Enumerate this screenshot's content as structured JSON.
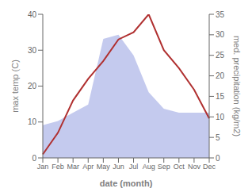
{
  "chart_data": {
    "type": "line",
    "xlabel": "date (month)",
    "ylabel": "max temp (C)",
    "y2label": "med. precipitation (kg/m2)",
    "categories": [
      "Jan",
      "Feb",
      "Mar",
      "Apr",
      "May",
      "Jun",
      "Jul",
      "Aug",
      "Sep",
      "Oct",
      "Nov",
      "Dec"
    ],
    "series": [
      {
        "type": "area",
        "axis": "y2",
        "color": "#b0b8e8",
        "values": [
          8,
          9,
          11,
          13,
          29,
          30,
          25,
          16,
          12,
          11,
          11,
          11
        ]
      },
      {
        "type": "line",
        "color": "#b03030",
        "values": [
          1,
          7,
          16,
          22,
          27,
          33,
          35,
          40,
          30,
          25,
          19,
          11
        ]
      }
    ],
    "ylim": [
      0,
      40
    ],
    "yticks": [
      0,
      10,
      20,
      30,
      40
    ],
    "y2lim": [
      0,
      35
    ],
    "y2ticks": [
      0,
      5,
      10,
      15,
      20,
      25,
      30,
      35
    ],
    "grid": false
  }
}
